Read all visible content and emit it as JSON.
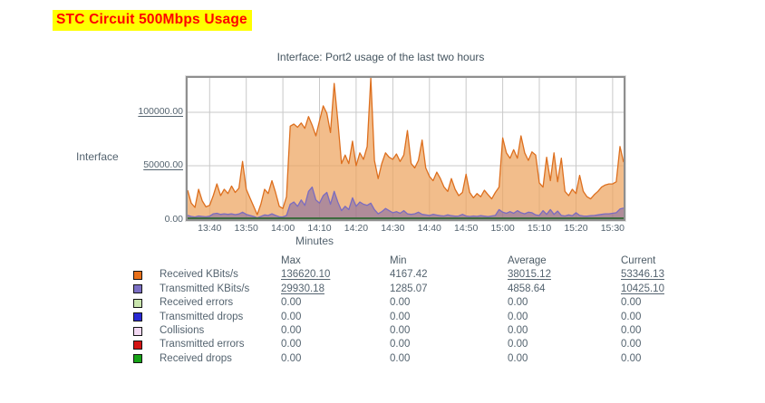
{
  "page": {
    "heading": "STC Circuit 500Mbps Usage",
    "heading_color": "#ff0000",
    "heading_bg": "#ffff00"
  },
  "chart": {
    "title": "Interface: Port2 usage of the last two hours",
    "side_label": "Interface",
    "x_axis_title": "Minutes"
  },
  "chart_data": {
    "type": "area",
    "title": "Interface: Port2 usage of the last two hours",
    "xlabel": "Minutes",
    "ylabel": "",
    "x_start": "13:34",
    "x_end": "15:33",
    "point_interval_minutes": 1,
    "ylim": [
      0,
      132200
    ],
    "grid": true,
    "legend_position": "bottom-table",
    "baseline_color": "#3f6b3f",
    "grid_color": "#c9c9c9",
    "y_ticks": [
      {
        "label": "0.00",
        "value": 0,
        "underline": false
      },
      {
        "label": "50000.00",
        "value": 50000,
        "underline": true
      },
      {
        "label": "100000.00",
        "value": 100000,
        "underline": true
      }
    ],
    "x_ticks": [
      {
        "label": "13:40",
        "minute": 6
      },
      {
        "label": "13:50",
        "minute": 16
      },
      {
        "label": "14:00",
        "minute": 26
      },
      {
        "label": "14:10",
        "minute": 36
      },
      {
        "label": "14:20",
        "minute": 46
      },
      {
        "label": "14:30",
        "minute": 56
      },
      {
        "label": "14:40",
        "minute": 66
      },
      {
        "label": "14:50",
        "minute": 76
      },
      {
        "label": "15:00",
        "minute": 86
      },
      {
        "label": "15:10",
        "minute": 96
      },
      {
        "label": "15:20",
        "minute": 106
      },
      {
        "label": "15:30",
        "minute": 116
      }
    ],
    "series": [
      {
        "name": "Received KBits/s",
        "line_color": "#dd6f1e",
        "fill_color": "#eda45e",
        "fill_opacity": 0.72,
        "values": [
          27000,
          15000,
          11000,
          28000,
          17000,
          11500,
          13000,
          22000,
          33000,
          22000,
          28000,
          24000,
          31000,
          25000,
          29000,
          54000,
          28000,
          20000,
          12000,
          4200,
          14000,
          28000,
          24000,
          36000,
          25000,
          12000,
          10000,
          21000,
          87000,
          89000,
          86000,
          90000,
          85000,
          96000,
          88000,
          78000,
          92000,
          106000,
          99000,
          81000,
          127000,
          92000,
          52000,
          60000,
          52000,
          73000,
          50000,
          62000,
          56000,
          68000,
          136620,
          55000,
          38000,
          52000,
          62000,
          58000,
          56000,
          61000,
          54000,
          60000,
          83000,
          52000,
          48000,
          55000,
          74000,
          48000,
          40000,
          36000,
          44000,
          38000,
          30000,
          26000,
          38000,
          28000,
          22000,
          25000,
          42000,
          25000,
          20000,
          24000,
          21000,
          27000,
          23000,
          19000,
          25000,
          30000,
          76000,
          62000,
          57000,
          65000,
          57000,
          78000,
          62000,
          55000,
          63000,
          60000,
          34000,
          30000,
          58000,
          36000,
          62000,
          35000,
          57000,
          26000,
          22000,
          28000,
          24000,
          41000,
          26000,
          21000,
          19000,
          23000,
          26000,
          30000,
          32000,
          33000,
          33000,
          35000,
          68000,
          53346
        ]
      },
      {
        "name": "Transmitted KBits/s",
        "line_color": "#7a6cc0",
        "fill_color": "#5f4fae",
        "fill_opacity": 0.45,
        "values": [
          3500,
          2500,
          2000,
          3000,
          2500,
          2200,
          2800,
          5000,
          5500,
          4500,
          5000,
          4500,
          5000,
          4200,
          4800,
          6500,
          4500,
          3500,
          2500,
          1300,
          2500,
          4000,
          3500,
          5000,
          3500,
          2200,
          2000,
          3500,
          14000,
          16000,
          12000,
          18000,
          13000,
          26000,
          30000,
          18000,
          15000,
          22000,
          25000,
          14000,
          26000,
          16000,
          8000,
          12000,
          9000,
          20000,
          12000,
          16000,
          14000,
          13000,
          15000,
          9000,
          5000,
          7000,
          10000,
          8000,
          6000,
          7000,
          5500,
          8000,
          5000,
          4500,
          5000,
          6500,
          4500,
          4000,
          3500,
          4500,
          3800,
          3200,
          3000,
          4000,
          3200,
          2800,
          3000,
          4500,
          3000,
          2500,
          3000,
          2600,
          3200,
          2800,
          2400,
          3000,
          3500,
          9000,
          6500,
          5500,
          7000,
          5500,
          8000,
          6000,
          5000,
          6500,
          6000,
          4000,
          3500,
          8000,
          4500,
          9000,
          4500,
          7500,
          3500,
          3000,
          4000,
          3200,
          6000,
          3500,
          3000,
          2800,
          3200,
          3500,
          4000,
          4500,
          5000,
          5000,
          5500,
          6000,
          9500,
          10425
        ]
      }
    ]
  },
  "legend": {
    "headers": [
      "Max",
      "Min",
      "Average",
      "Current"
    ],
    "rows": [
      {
        "swatch": "#e8701a",
        "label": "Received KBits/s",
        "values": [
          "136620.10",
          "4167.42",
          "38015.12",
          "53346.13"
        ],
        "underline": [
          true,
          false,
          true,
          true
        ]
      },
      {
        "swatch": "#7b6fc4",
        "label": "Transmitted KBits/s",
        "values": [
          "29930.18",
          "1285.07",
          "4858.64",
          "10425.10"
        ],
        "underline": [
          true,
          false,
          false,
          true
        ]
      },
      {
        "swatch": "#c9e5ad",
        "label": "Received errors",
        "values": [
          "0.00",
          "0.00",
          "0.00",
          "0.00"
        ],
        "underline": [
          false,
          false,
          false,
          false
        ]
      },
      {
        "swatch": "#2a2ad4",
        "label": "Transmitted drops",
        "values": [
          "0.00",
          "0.00",
          "0.00",
          "0.00"
        ],
        "underline": [
          false,
          false,
          false,
          false
        ]
      },
      {
        "swatch": "#f3d9f3",
        "label": "Collisions",
        "values": [
          "0.00",
          "0.00",
          "0.00",
          "0.00"
        ],
        "underline": [
          false,
          false,
          false,
          false
        ]
      },
      {
        "swatch": "#d41414",
        "label": "Transmitted errors",
        "values": [
          "0.00",
          "0.00",
          "0.00",
          "0.00"
        ],
        "underline": [
          false,
          false,
          false,
          false
        ]
      },
      {
        "swatch": "#17a317",
        "label": "Received drops",
        "values": [
          "0.00",
          "0.00",
          "0.00",
          "0.00"
        ],
        "underline": [
          false,
          false,
          false,
          false
        ]
      }
    ]
  }
}
